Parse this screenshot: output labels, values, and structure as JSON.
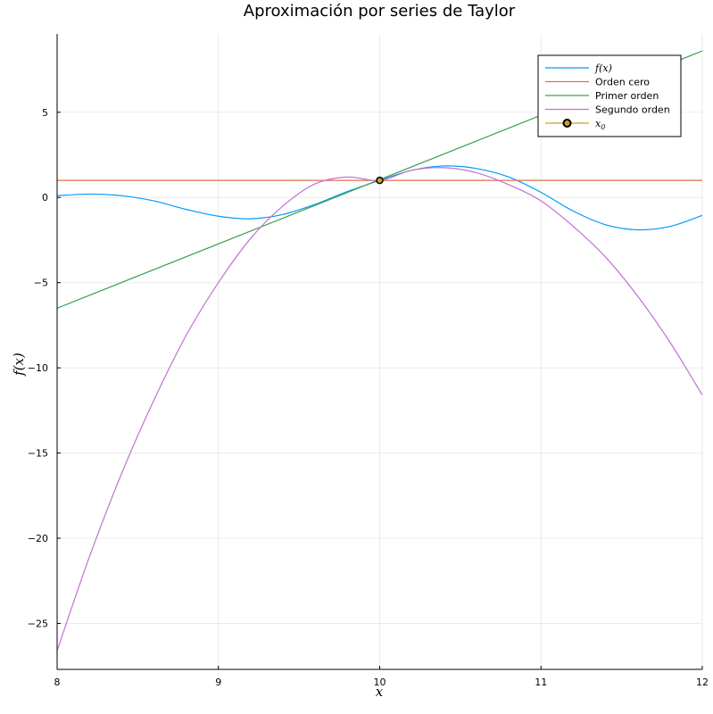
{
  "chart_data": {
    "type": "line",
    "title": "Aproximación por series de Taylor",
    "xlabel": "x",
    "ylabel": "f(x)",
    "xlim": [
      8,
      12
    ],
    "ylim": [
      -27.7,
      9.6
    ],
    "x_ticks": [
      "8",
      "9",
      "10",
      "11",
      "12"
    ],
    "y_ticks": [
      "5",
      "0",
      "−5",
      "−10",
      "−15",
      "−20",
      "−25"
    ],
    "grid": true,
    "legend_position": "top-right",
    "series": [
      {
        "name": "f(x)",
        "color": "#009AFA",
        "x": [
          8.0,
          8.2,
          8.4,
          8.6,
          8.8,
          9.0,
          9.2,
          9.4,
          9.6,
          9.8,
          10.0,
          10.2,
          10.4,
          10.6,
          10.8,
          11.0,
          11.2,
          11.4,
          11.6,
          11.8,
          12.0
        ],
        "y": [
          0.1,
          0.2,
          0.1,
          -0.2,
          -0.7,
          -1.1,
          -1.25,
          -1.0,
          -0.4,
          0.35,
          1.0,
          1.6,
          1.85,
          1.7,
          1.2,
          0.3,
          -0.8,
          -1.6,
          -1.9,
          -1.7,
          -1.05
        ]
      },
      {
        "name": "Orden cero",
        "color": "#E36F47",
        "x": [
          8,
          12
        ],
        "y": [
          1.0,
          1.0
        ]
      },
      {
        "name": "Primer orden",
        "color": "#3EA44E",
        "x": [
          8,
          12
        ],
        "y": [
          -6.5,
          8.6
        ]
      },
      {
        "name": "Segundo orden",
        "color": "#C271D2",
        "x": [
          8.0,
          8.2,
          8.4,
          8.6,
          8.8,
          9.0,
          9.2,
          9.4,
          9.6,
          9.8,
          10.0,
          10.2,
          10.4,
          10.6,
          10.8,
          11.0,
          11.2,
          11.4,
          11.6,
          11.8,
          12.0
        ],
        "y": [
          -26.6,
          -21.1,
          -16.2,
          -11.9,
          -8.1,
          -5.0,
          -2.4,
          -0.5,
          0.8,
          1.2,
          1.0,
          1.6,
          1.75,
          1.45,
          0.75,
          -0.2,
          -1.7,
          -3.5,
          -5.8,
          -8.5,
          -11.6
        ]
      },
      {
        "name": "x0",
        "color": "#C2A523",
        "type": "scatter",
        "x": [
          10
        ],
        "y": [
          1.0
        ]
      }
    ]
  }
}
